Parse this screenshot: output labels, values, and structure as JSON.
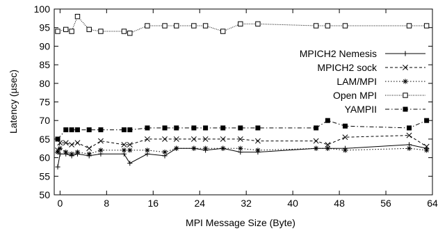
{
  "chart_data": {
    "type": "line",
    "xlabel": "MPI Message Size (Byte)",
    "ylabel": "Latency (µsec)",
    "xlim": [
      -1,
      64
    ],
    "ylim": [
      50,
      100
    ],
    "xticks": [
      0,
      8,
      16,
      24,
      32,
      40,
      48,
      56,
      64
    ],
    "yticks": [
      50,
      55,
      60,
      65,
      70,
      75,
      80,
      85,
      90,
      95,
      100
    ],
    "grid": false,
    "legend": "center-right",
    "series": [
      {
        "name": "MPICH2 Nemesis",
        "marker": "plus",
        "dash": "solid",
        "x": [
          -0.4,
          0,
          1,
          2,
          3,
          5,
          7,
          11,
          12,
          15,
          18,
          20,
          23,
          25,
          28,
          31,
          34,
          44,
          46,
          49,
          60,
          63
        ],
        "y": [
          57.5,
          61,
          61,
          60.5,
          61,
          60.5,
          61,
          61,
          58.5,
          61,
          60.5,
          62.5,
          62.5,
          62,
          62.5,
          61.5,
          61.5,
          62.5,
          62.5,
          62.5,
          63.5,
          62.5
        ]
      },
      {
        "name": "MPICH2 sock",
        "marker": "x",
        "dash": "dashed",
        "x": [
          -0.4,
          0,
          1,
          2,
          3,
          5,
          7,
          11,
          12,
          15,
          18,
          20,
          23,
          25,
          28,
          31,
          34,
          44,
          46,
          49,
          60,
          63
        ],
        "y": [
          62,
          64,
          64,
          63.5,
          64,
          62.5,
          64.5,
          63.5,
          63.5,
          65,
          65,
          65,
          65,
          65,
          65,
          65,
          64.5,
          64.5,
          63.5,
          65.5,
          66,
          63
        ]
      },
      {
        "name": "LAM/MPI",
        "marker": "star",
        "dash": "dotted",
        "x": [
          -0.4,
          0,
          1,
          2,
          3,
          5,
          7,
          11,
          12,
          15,
          18,
          20,
          23,
          25,
          28,
          31,
          34,
          44,
          46,
          49,
          60,
          63
        ],
        "y": [
          61.5,
          62.5,
          61.5,
          61,
          61.5,
          61,
          62,
          62,
          62,
          62,
          61.5,
          62.5,
          62.5,
          62.5,
          62.5,
          62.5,
          62,
          62.5,
          62.5,
          62,
          62.5,
          62
        ]
      },
      {
        "name": "Open MPI",
        "marker": "square",
        "dash": "dotted-fine",
        "x": [
          -0.4,
          1,
          2,
          3,
          5,
          7,
          11,
          12,
          15,
          18,
          20,
          23,
          25,
          28,
          31,
          34,
          44,
          46,
          49,
          60,
          63
        ],
        "y": [
          94,
          94.5,
          94,
          98,
          94.5,
          94,
          94,
          93.5,
          95.5,
          95.5,
          95.5,
          95.5,
          95.5,
          94,
          96,
          96,
          95.5,
          95.5,
          95.5,
          95.5,
          95.5
        ]
      },
      {
        "name": "YAMPII",
        "marker": "filled-square",
        "dash": "dashdot",
        "x": [
          -0.4,
          1,
          2,
          3,
          5,
          7,
          11,
          12,
          15,
          18,
          20,
          23,
          25,
          28,
          31,
          34,
          44,
          46,
          49,
          60,
          63
        ],
        "y": [
          65,
          67.5,
          67.5,
          67.5,
          67.5,
          67.5,
          67.5,
          67.5,
          68,
          68,
          68,
          68,
          68,
          68,
          68,
          68,
          68,
          70,
          68.5,
          68,
          70
        ]
      }
    ]
  }
}
